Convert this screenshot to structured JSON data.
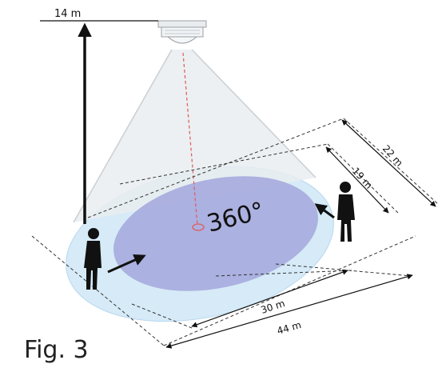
{
  "figure": {
    "caption": "Fig. 3"
  },
  "labels": {
    "mount_height": "14 m",
    "field_angle": "360°",
    "inner_width": "30 m",
    "outer_width": "44 m",
    "inner_depth": "19 m",
    "outer_depth": "22 m"
  },
  "colors": {
    "outer_zone": "#d6eaf7",
    "inner_zone": "#a9aede",
    "cone": "#e8ecef",
    "laser_line": "#e05a5a"
  }
}
